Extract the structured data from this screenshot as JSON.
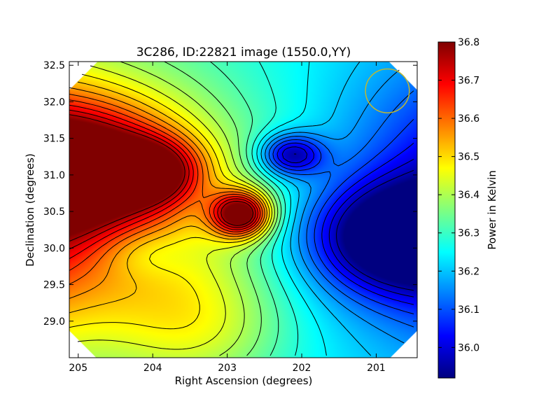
{
  "chart_data": {
    "type": "heatmap",
    "title": "3C286, ID:22821 image (1550.0,YY)",
    "xlabel": "Right Ascension (degrees)",
    "ylabel": "Declination (degrees)",
    "colorbar_label": "Power in Kelvin",
    "xlim": [
      205.12,
      200.45
    ],
    "ylim": [
      28.5,
      32.55
    ],
    "x_ticks": [
      205,
      204,
      203,
      202,
      201
    ],
    "x_tick_labels": [
      "205",
      "204",
      "203",
      "202",
      "201"
    ],
    "y_ticks": [
      29.0,
      29.5,
      30.0,
      30.5,
      31.0,
      31.5,
      32.0,
      32.5
    ],
    "y_tick_labels": [
      "29.0",
      "29.5",
      "30.0",
      "30.5",
      "31.0",
      "31.5",
      "32.0",
      "32.5"
    ],
    "colorbar_range": [
      35.92,
      36.8
    ],
    "colorbar_ticks": [
      36.0,
      36.1,
      36.2,
      36.3,
      36.4,
      36.5,
      36.6,
      36.7,
      36.8
    ],
    "colorbar_tick_labels": [
      "36.0",
      "36.1",
      "36.2",
      "36.3",
      "36.4",
      "36.5",
      "36.6",
      "36.7",
      "36.8"
    ],
    "colormap": "jet",
    "coverage": "diamond",
    "contours": "black",
    "field_features": [
      {
        "ra": 202.82,
        "dec": 30.47,
        "value": 36.79,
        "sx": 0.28,
        "sy": 0.22,
        "kind": "peak"
      },
      {
        "ra": 205.1,
        "dec": 31.1,
        "value": 36.72,
        "sx": 0.9,
        "sy": 0.55,
        "kind": "peak"
      },
      {
        "ra": 204.0,
        "dec": 31.05,
        "value": 36.58,
        "sx": 0.45,
        "sy": 0.3,
        "kind": "peak"
      },
      {
        "ra": 200.65,
        "dec": 30.15,
        "value": 35.92,
        "sx": 0.85,
        "sy": 0.5,
        "kind": "trough"
      },
      {
        "ra": 202.15,
        "dec": 31.28,
        "value": 36.0,
        "sx": 0.3,
        "sy": 0.2,
        "kind": "trough"
      },
      {
        "ra": 204.15,
        "dec": 29.95,
        "value": 36.22,
        "sx": 0.45,
        "sy": 0.25,
        "kind": "trough"
      },
      {
        "ra": 203.35,
        "dec": 28.9,
        "value": 36.42,
        "sx": 0.8,
        "sy": 0.6,
        "kind": "peak"
      }
    ],
    "beam": {
      "ra": 200.85,
      "dec": 32.15,
      "radius_deg": 0.3,
      "color": "#c0b830"
    }
  }
}
